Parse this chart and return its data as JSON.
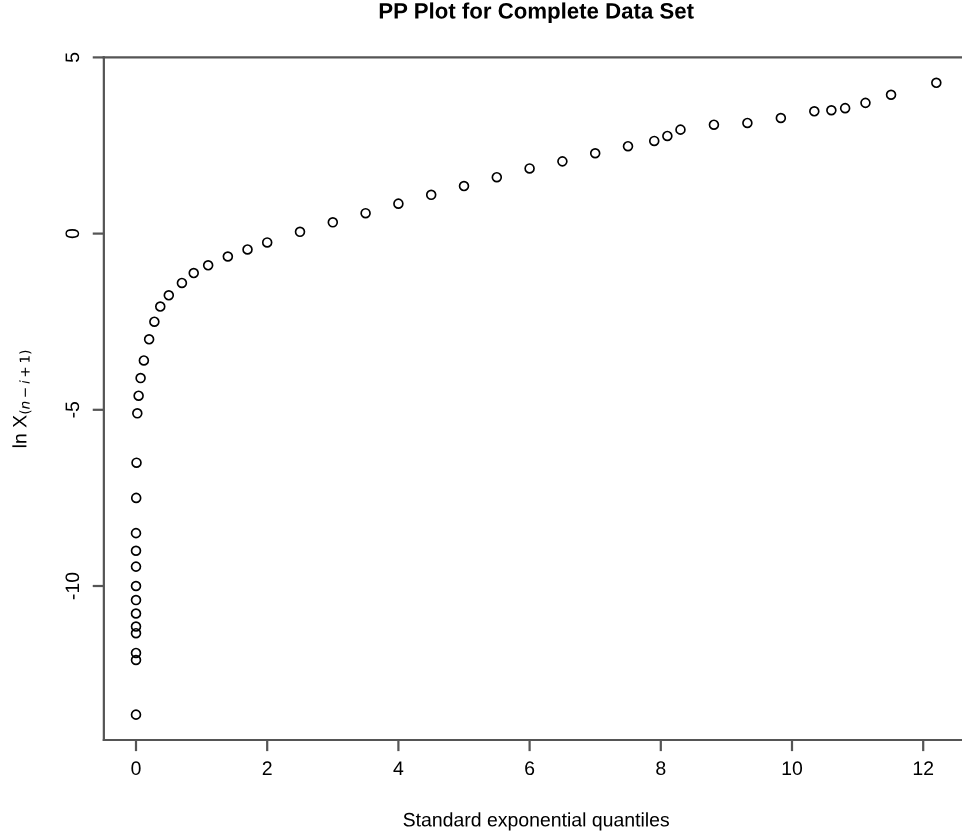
{
  "chart_data": {
    "type": "scatter",
    "title": "PP Plot for Complete Data Set",
    "xlabel": "Standard exponential quantiles",
    "ylabel": "ln X$_{(n−i+1)}$",
    "x": [
      0,
      0,
      0,
      0,
      0,
      0,
      0,
      0,
      0,
      0,
      0,
      0.003,
      0.008,
      0.02,
      0.04,
      0.07,
      0.12,
      0.2,
      0.28,
      0.37,
      0.5,
      0.7,
      0.88,
      1.1,
      1.4,
      1.7,
      2.0,
      2.5,
      3.0,
      3.5,
      4.0,
      4.5,
      5.0,
      5.5,
      6.0,
      6.5,
      7.0,
      7.5,
      7.9,
      8.1,
      8.3,
      8.81,
      9.32,
      9.83,
      10.34,
      10.6,
      10.81,
      11.12,
      11.51,
      12.2
    ],
    "values": [
      -13.65,
      -12.1,
      -11.9,
      -11.34,
      -11.15,
      -10.78,
      -10.4,
      -10.0,
      -9.45,
      -9.0,
      -8.5,
      -7.5,
      -6.5,
      -5.1,
      -4.6,
      -4.1,
      -3.6,
      -3.0,
      -2.5,
      -2.07,
      -1.75,
      -1.4,
      -1.12,
      -0.9,
      -0.65,
      -0.45,
      -0.25,
      0.05,
      0.32,
      0.58,
      0.85,
      1.1,
      1.35,
      1.6,
      1.85,
      2.05,
      2.28,
      2.48,
      2.63,
      2.77,
      2.95,
      3.09,
      3.14,
      3.28,
      3.47,
      3.5,
      3.56,
      3.71,
      3.94,
      4.28
    ],
    "color": "#000000",
    "marker": "circle",
    "grid": false,
    "xlim": [
      -0.49,
      12.69
    ],
    "ylim": [
      -14.37,
      5.0
    ],
    "xticks": [
      0,
      2,
      4,
      6,
      8,
      10,
      12
    ],
    "yticks": [
      -10,
      -5,
      0,
      5
    ]
  }
}
